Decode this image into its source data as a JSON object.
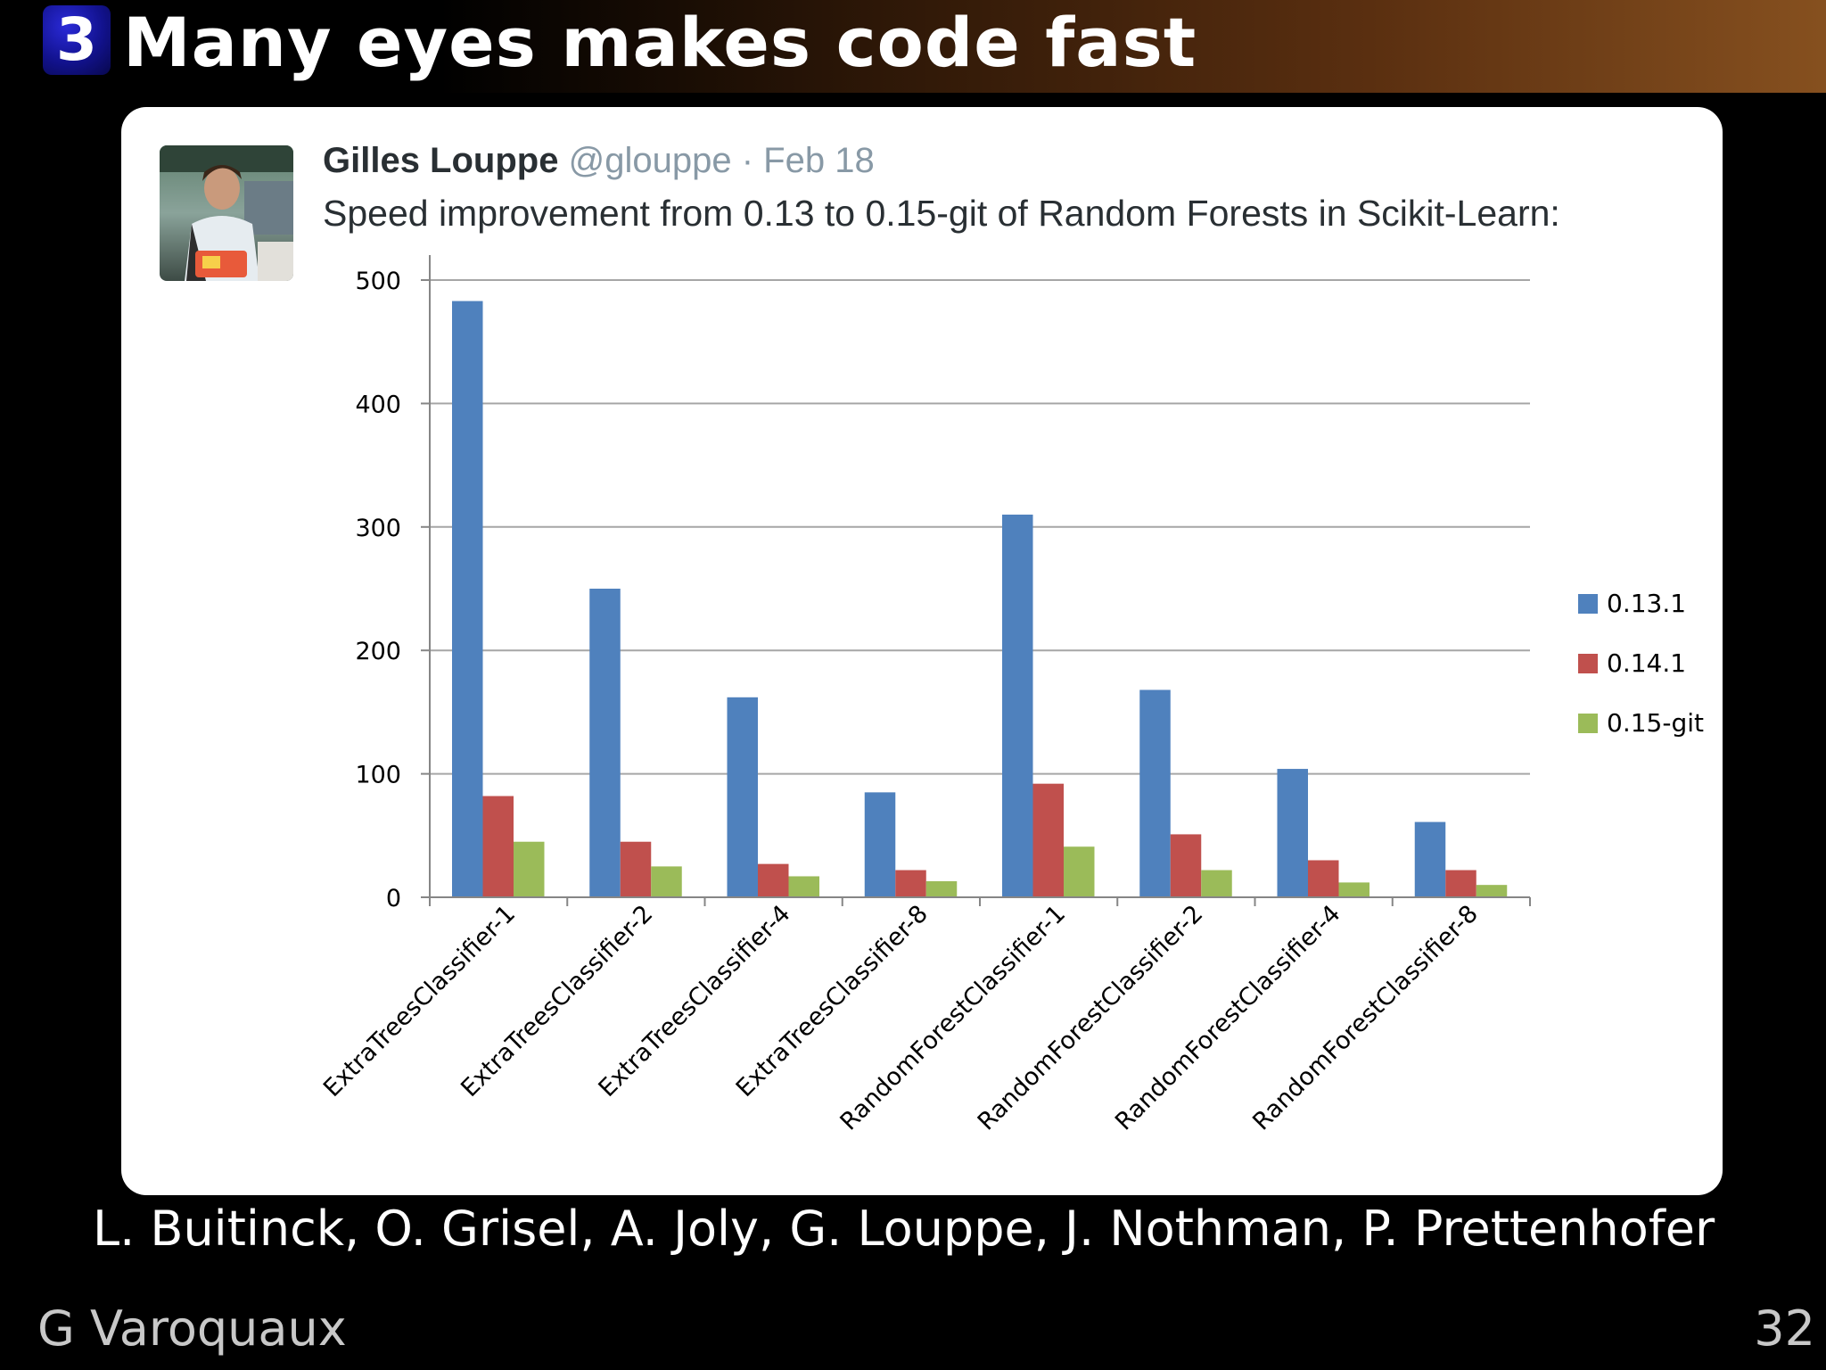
{
  "slide": {
    "section_number": "3",
    "title": "Many eyes makes code fast",
    "authors": "L. Buitinck, O. Grisel, A. Joly, G. Louppe, J. Nothman, P. Prettenhofer",
    "footer_author": "G Varoquaux",
    "page_number": "32"
  },
  "tweet": {
    "author_name": "Gilles Louppe",
    "handle": "@glouppe",
    "separator": "·",
    "date": "Feb 18",
    "text": "Speed improvement from 0.13 to 0.15-git of Random Forests in Scikit-Learn:"
  },
  "colors": {
    "series": [
      "#4f81bd",
      "#c0504d",
      "#9bbb59"
    ],
    "grid": "#a6a6a6",
    "axis": "#868686"
  },
  "chart_data": {
    "type": "bar",
    "title": "",
    "xlabel": "",
    "ylabel": "",
    "ylim": [
      0,
      500
    ],
    "yticks": [
      0,
      100,
      200,
      300,
      400,
      500
    ],
    "grid": true,
    "legend_position": "right",
    "categories": [
      "ExtraTreesClassifier-1",
      "ExtraTreesClassifier-2",
      "ExtraTreesClassifier-4",
      "ExtraTreesClassifier-8",
      "RandomForestClassifier-1",
      "RandomForestClassifier-2",
      "RandomForestClassifier-4",
      "RandomForestClassifier-8"
    ],
    "series": [
      {
        "name": "0.13.1",
        "values": [
          483,
          250,
          162,
          85,
          310,
          168,
          104,
          61
        ]
      },
      {
        "name": "0.14.1",
        "values": [
          82,
          45,
          27,
          22,
          92,
          51,
          30,
          22
        ]
      },
      {
        "name": "0.15-git",
        "values": [
          45,
          25,
          17,
          13,
          41,
          22,
          12,
          10
        ]
      }
    ]
  }
}
